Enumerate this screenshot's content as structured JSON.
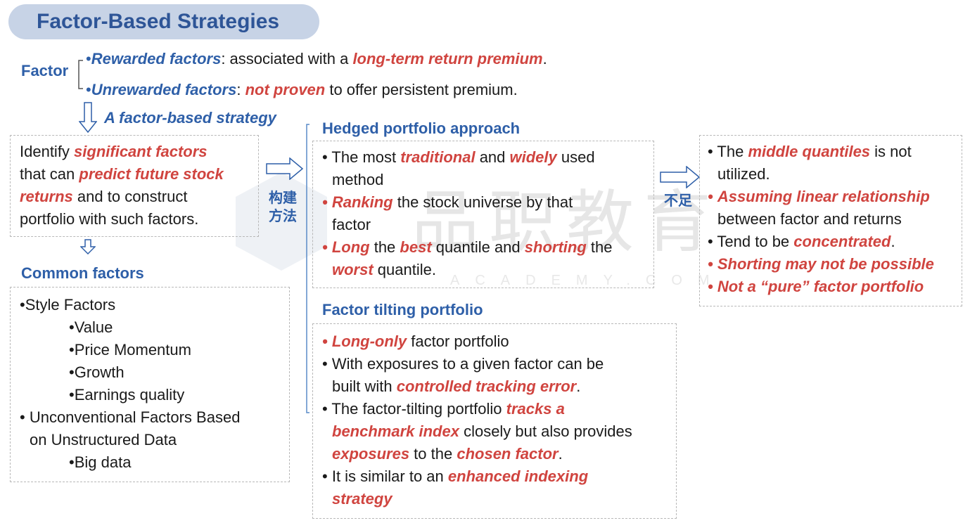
{
  "title": "Factor-Based Strategies",
  "factor_label": "Factor",
  "factor_lines": [
    {
      "bullet": "•",
      "a": "Rewarded factors",
      "b": ": associated with a ",
      "c": "long-term return premium",
      "d": "."
    },
    {
      "bullet": "•",
      "a": "Unrewarded factors",
      "b": ": ",
      "c": "not proven",
      "d": " to offer persistent premium."
    }
  ],
  "strategy_label": "A factor-based strategy",
  "identify": {
    "l1a": "Identify ",
    "l1b": "significant factors",
    "l2a": "that can ",
    "l2b": "predict future stock",
    "l3a": "returns",
    "l3b": " and to construct",
    "l4": "portfolio with such factors."
  },
  "cjk_method_1": "构建",
  "cjk_method_2": "方法",
  "cjk_short": "不足",
  "common_title": "Common factors",
  "common": {
    "style": "•Style Factors",
    "value": "•Value",
    "momentum": "•Price Momentum",
    "growth": "•Growth",
    "earnings": "•Earnings quality",
    "unconv1": "• Unconventional Factors Based",
    "unconv2": "on Unstructured Data",
    "bigdata": "•Big data"
  },
  "hedged_title": "Hedged portfolio approach",
  "hedged": {
    "b1a": "The most ",
    "b1b": "traditional",
    "b1c": " and ",
    "b1d": "widely",
    "b1e": " used",
    "b1f": "method",
    "b2a": "Ranking",
    "b2b": " the stock universe by that",
    "b2c": "factor",
    "b3a": "Long",
    "b3b": " the ",
    "b3c": "best",
    "b3d": " quantile and ",
    "b3e": "shorting",
    "b3f": " the",
    "b3g": "worst",
    "b3h": " quantile."
  },
  "tilt_title": "Factor tilting portfolio",
  "tilt": {
    "b1a": "Long-only",
    "b1b": " factor portfolio",
    "b2a": "With exposures to a given factor can be",
    "b2b": "built with ",
    "b2c": "controlled tracking error",
    "b2d": ".",
    "b3a": "The factor-tilting portfolio ",
    "b3b": "tracks a",
    "b3c": "benchmark index",
    "b3d": " closely but also provides",
    "b3e": "exposures",
    "b3f": " to the ",
    "b3g": "chosen factor",
    "b3h": ".",
    "b4a": "It is similar to an ",
    "b4b": "enhanced indexing",
    "b4c": "strategy"
  },
  "short": {
    "b1a": "The ",
    "b1b": "middle quantiles",
    "b1c": " is not",
    "b1d": "utilized.",
    "b2a": "Assuming linear relationship",
    "b2b": "between factor and returns",
    "b3a": "Tend to be ",
    "b3b": "concentrated",
    "b3c": ".",
    "b4": "Shorting may not be possible",
    "b5": "Not a “pure” factor portfolio"
  },
  "bullet": "•",
  "colors": {
    "accent_blue": "#2e5fa8",
    "accent_red": "#d0443f",
    "pill": "#c7d3e6"
  }
}
